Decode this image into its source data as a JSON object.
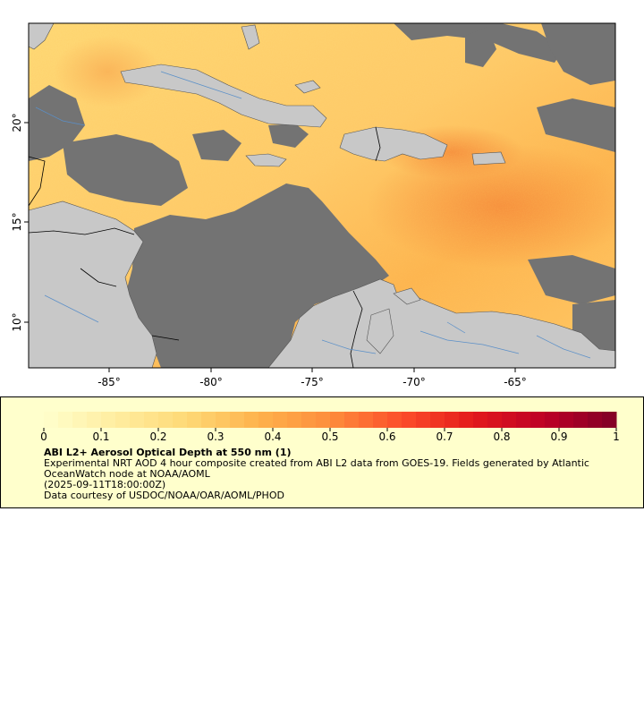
{
  "map": {
    "lon_ticks": [
      "-85°",
      "-80°",
      "-75°",
      "-70°",
      "-65°"
    ],
    "lat_ticks": [
      "20°",
      "15°",
      "10°"
    ],
    "colors": {
      "land": "#c8c8c8",
      "no_data": "#737373",
      "border": "#000000",
      "river": "#5a8fc8",
      "coast": "#555555"
    }
  },
  "legend": {
    "colorbar_ticks": [
      "0",
      "0.1",
      "0.2",
      "0.3",
      "0.4",
      "0.5",
      "0.6",
      "0.7",
      "0.8",
      "0.9",
      "1"
    ],
    "colormap": [
      "#ffffcc",
      "#ffeda0",
      "#fed976",
      "#feb24c",
      "#fd8d3c",
      "#fc4e2a",
      "#e31a1c",
      "#bd0026",
      "#800026"
    ],
    "title": "ABI L2+ Aerosol Optical Depth at 550 nm (1)",
    "description": "Experimental NRT AOD 4 hour composite created from ABI L2 data from GOES-19. Fields generated by Atlantic OceanWatch node at NOAA/AOML",
    "time": "(2025-09-11T18:00:00Z)",
    "credit": "Data courtesy of USDOC/NOAA/OAR/AOML/PHOD"
  }
}
